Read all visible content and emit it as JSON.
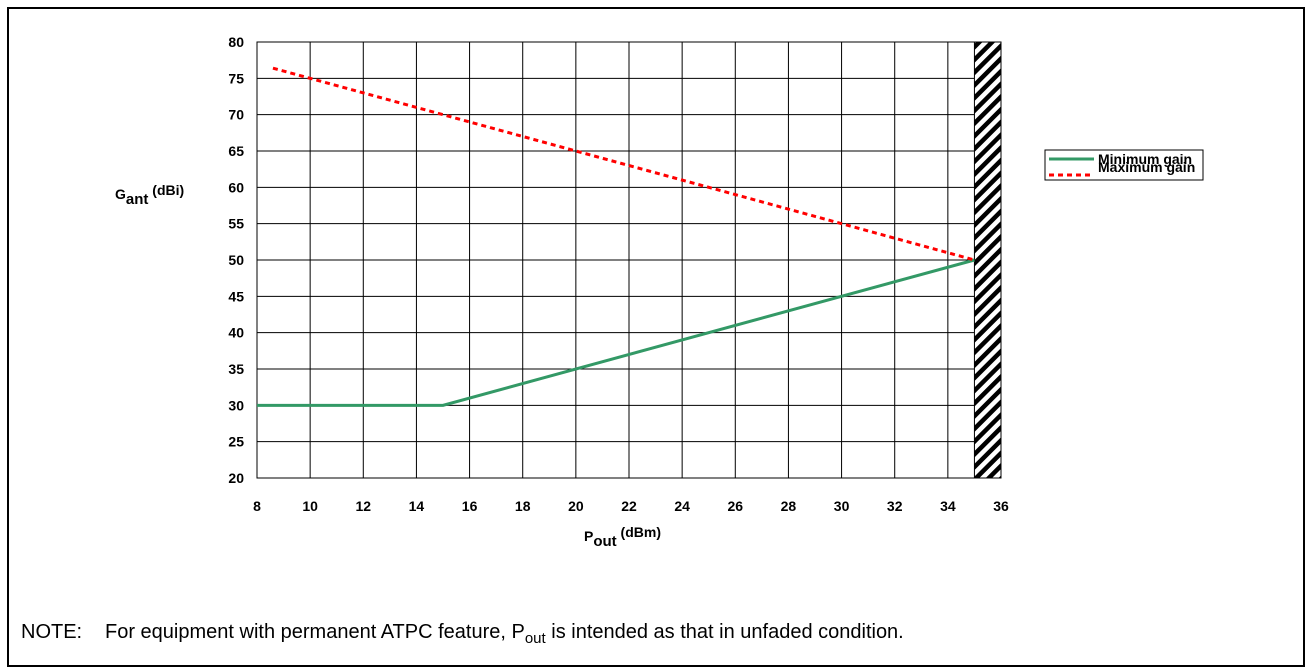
{
  "chart_data": {
    "type": "line",
    "xlabel": {
      "main": "P",
      "sub": "out",
      "unit": " (dBm)"
    },
    "ylabel": {
      "main": "G",
      "sub": "ant",
      "unit": " (dBi)"
    },
    "xlim": [
      8,
      36
    ],
    "ylim": [
      20,
      80
    ],
    "x_ticks": [
      8,
      10,
      12,
      14,
      16,
      18,
      20,
      22,
      24,
      26,
      28,
      30,
      32,
      34,
      36
    ],
    "y_ticks": [
      20,
      25,
      30,
      35,
      40,
      45,
      50,
      55,
      60,
      65,
      70,
      75,
      80
    ],
    "grid": true,
    "legend_position": "right",
    "excluded_region": {
      "x_from": 35,
      "x_to": 36,
      "pattern": "diagonal-hatch"
    },
    "series": [
      {
        "name": "Minimum gain",
        "color": "#339966",
        "style": "solid",
        "points": [
          [
            8,
            30
          ],
          [
            15,
            30
          ],
          [
            35,
            50
          ]
        ]
      },
      {
        "name": "Maximum gain",
        "color": "#ff0000",
        "style": "dashed",
        "points": [
          [
            8.6,
            76.4
          ],
          [
            35,
            50
          ]
        ]
      }
    ]
  },
  "note": {
    "label": "NOTE:",
    "text_before": "For equipment with permanent ATPC feature, P",
    "sub": "out",
    "text_after": " is intended as that in unfaded condition."
  }
}
